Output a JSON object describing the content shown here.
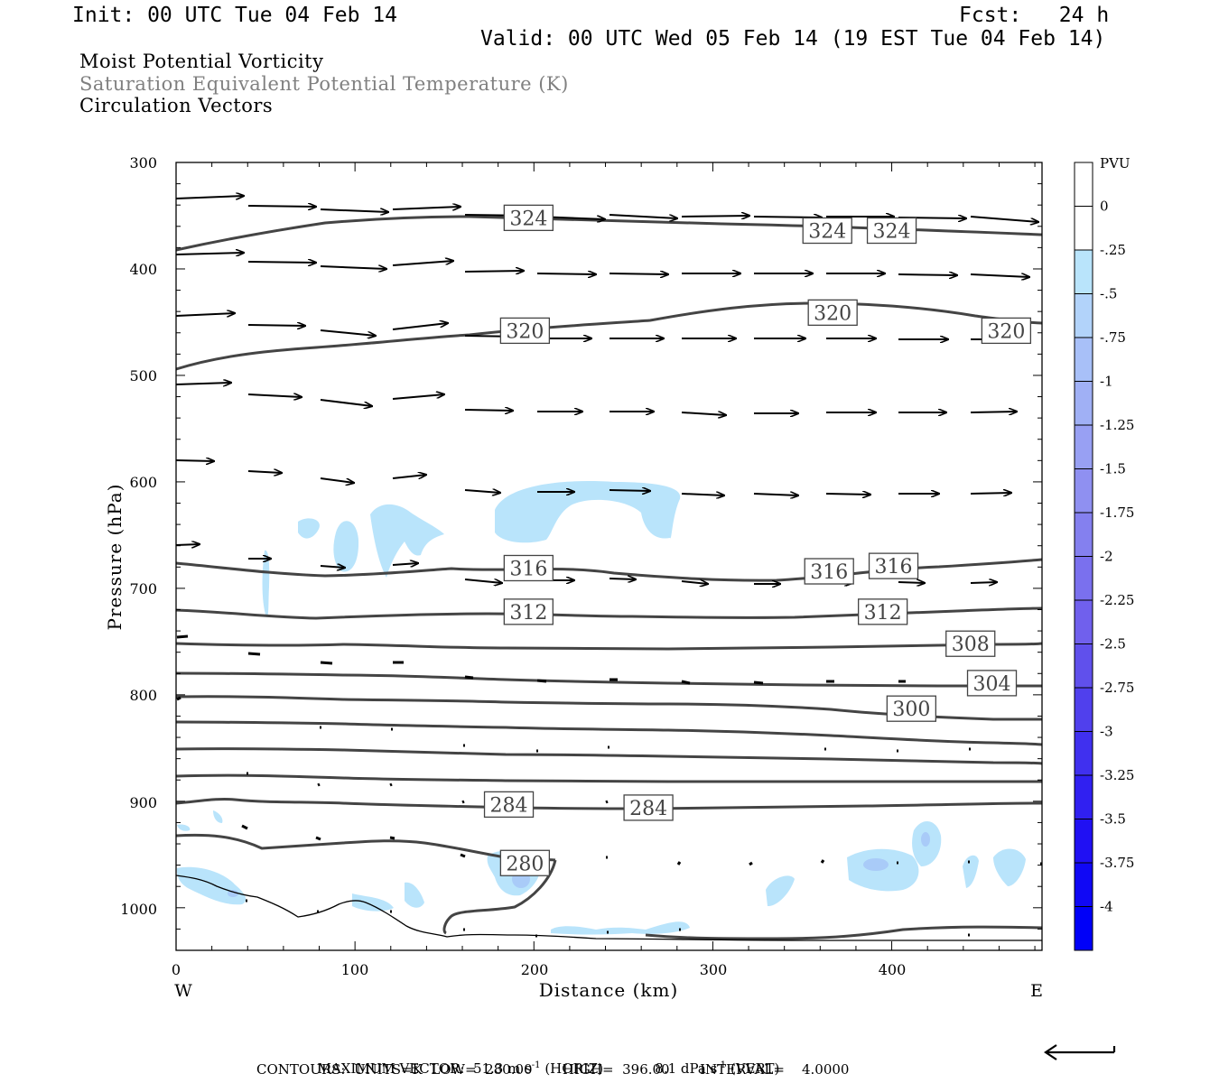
{
  "header": {
    "init": "Init: 00 UTC Tue 04 Feb 14",
    "fcst": "Fcst:   24 h",
    "valid": "Valid: 00 UTC Wed 05 Feb 14 (19 EST Tue 04 Feb 14)"
  },
  "fields": [
    "Moist Potential Vorticity",
    "Saturation Equivalent Potential Temperature (K)",
    "Circulation Vectors"
  ],
  "chart_data": {
    "type": "contour",
    "xlabel": "Distance (km)",
    "ylabel": "Pressure (hPa)",
    "xlim": [
      0,
      484
    ],
    "ylim": [
      1040,
      300
    ],
    "x_ticks": [
      0,
      100,
      200,
      300,
      400
    ],
    "y_ticks": [
      300,
      400,
      500,
      600,
      700,
      800,
      900,
      1000
    ],
    "x_end_labels": {
      "left": "W",
      "right": "E"
    },
    "contour_labels": [
      {
        "value": "324",
        "x": 197,
        "p": 352
      },
      {
        "value": "324",
        "x": 364,
        "p": 364
      },
      {
        "value": "324",
        "x": 400,
        "p": 364
      },
      {
        "value": "320",
        "x": 195,
        "p": 458
      },
      {
        "value": "320",
        "x": 367,
        "p": 441
      },
      {
        "value": "320",
        "x": 464,
        "p": 458
      },
      {
        "value": "316",
        "x": 197,
        "p": 681
      },
      {
        "value": "316",
        "x": 365,
        "p": 684
      },
      {
        "value": "316",
        "x": 401,
        "p": 679
      },
      {
        "value": "312",
        "x": 197,
        "p": 722
      },
      {
        "value": "312",
        "x": 395,
        "p": 722
      },
      {
        "value": "308",
        "x": 444,
        "p": 752
      },
      {
        "value": "304",
        "x": 456,
        "p": 789
      },
      {
        "value": "300",
        "x": 411,
        "p": 813
      },
      {
        "value": "284",
        "x": 186,
        "p": 903
      },
      {
        "value": "284",
        "x": 264,
        "p": 906
      },
      {
        "value": "280",
        "x": 195,
        "p": 958
      }
    ],
    "colorbar": {
      "title": "PVU",
      "levels": [
        "0",
        "-.25",
        "-.5",
        "-.75",
        "-1",
        "-1.25",
        "-1.5",
        "-1.75",
        "-2",
        "-2.25",
        "-2.5",
        "-2.75",
        "-3",
        "-3.25",
        "-3.5",
        "-3.75",
        "-4"
      ],
      "colors": [
        "#ffffff",
        "#ffffff",
        "#b9e4fb",
        "#b2d3fa",
        "#a8c0f8",
        "#a0b0f5",
        "#98a0f3",
        "#8f90f1",
        "#8480ef",
        "#7a70ee",
        "#7060ed",
        "#6050ec",
        "#5040ed",
        "#4030ef",
        "#3020f1",
        "#2010f3",
        "#1008f5",
        "#0000f8"
      ]
    },
    "vector_max": {
      "horiz": "51.3 m s",
      "horiz_unit": "(HORIZ)",
      "vert": "8.1 dPa s",
      "vert_unit": "(VERT)"
    }
  },
  "footer": {
    "max_vector_label": "MAXIMUM VECTOR:",
    "sup": "-1",
    "contours": "CONTOURS:  UNITS=K  LOW=  280.00       HIGH=  396.00       INTERVAL=    4.0000"
  }
}
